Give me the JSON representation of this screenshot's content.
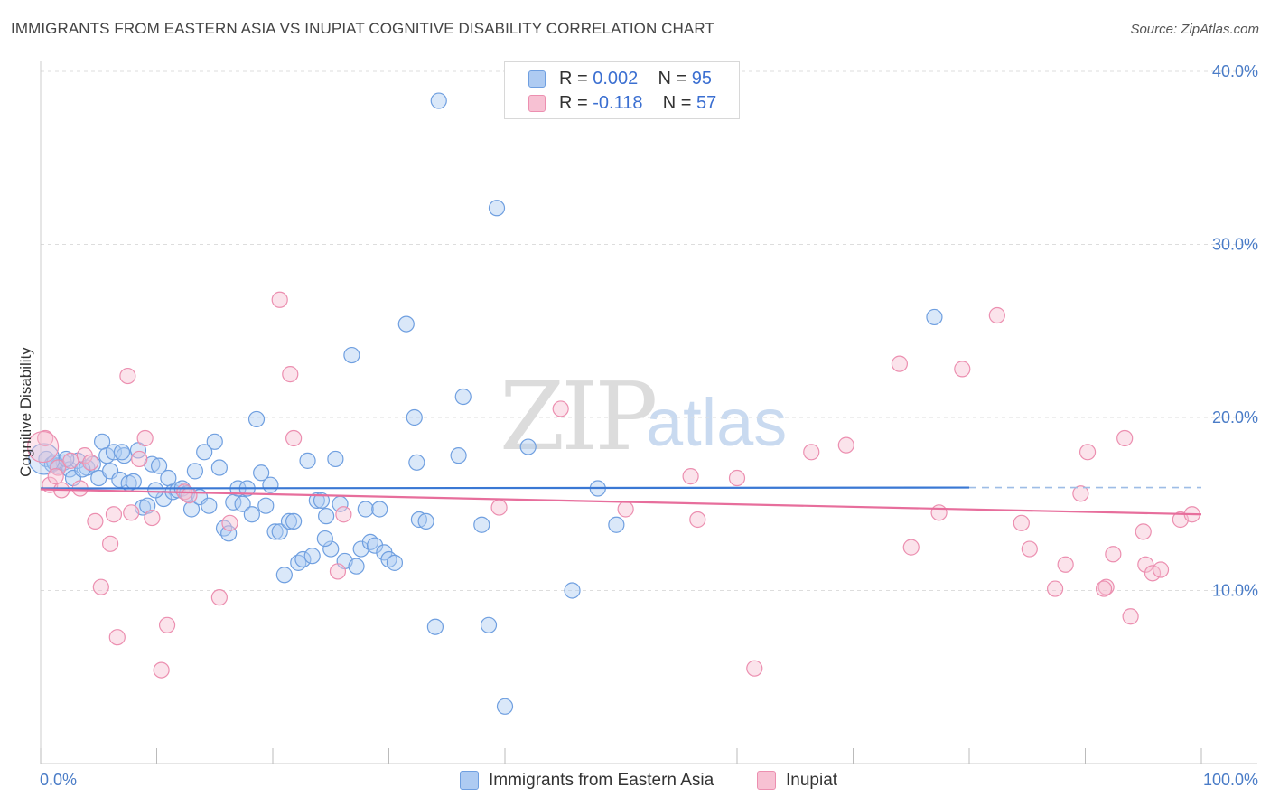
{
  "title": "IMMIGRANTS FROM EASTERN ASIA VS INUPIAT COGNITIVE DISABILITY CORRELATION CHART",
  "source": "Source: ZipAtlas.com",
  "watermark": {
    "zip": "ZIP",
    "atlas": "atlas"
  },
  "legend": {
    "r_label": "R =",
    "n_label": "N =",
    "series": [
      {
        "r": "0.002",
        "n": "95"
      },
      {
        "r": "-0.118",
        "n": "57"
      }
    ]
  },
  "colors": {
    "blue_fill": "#aecbf2",
    "blue_stroke": "#6f9fe0",
    "blue_line": "#3a78d4",
    "pink_fill": "#f7c1d3",
    "pink_stroke": "#ec8fb0",
    "pink_line": "#e76e9c",
    "grid": "#dddddd",
    "tick_text": "#4a7cc7"
  },
  "chart_data": {
    "type": "scatter",
    "title": "IMMIGRANTS FROM EASTERN ASIA VS INUPIAT COGNITIVE DISABILITY CORRELATION CHART",
    "xlabel": "",
    "ylabel": "Cognitive Disability",
    "xlim": [
      0,
      100
    ],
    "ylim": [
      0,
      42
    ],
    "x_tick_labels": [
      "0.0%",
      "100.0%"
    ],
    "y_ticks": [
      10,
      20,
      30,
      40
    ],
    "y_tick_labels": [
      "10.0%",
      "20.0%",
      "30.0%",
      "40.0%"
    ],
    "series": [
      {
        "name": "Immigrants from Eastern Asia",
        "color": "#6f9fe0",
        "trend": {
          "x": [
            0,
            80
          ],
          "y": [
            15.9,
            15.95
          ],
          "dashed_to_x": 100
        },
        "points": [
          [
            0.5,
            17.6
          ],
          [
            1.0,
            17.3
          ],
          [
            1.5,
            17.2
          ],
          [
            2.0,
            17.4
          ],
          [
            2.5,
            17.0
          ],
          [
            2.8,
            16.5
          ],
          [
            3.2,
            17.5
          ],
          [
            4.0,
            17.1
          ],
          [
            4.5,
            17.3
          ],
          [
            5.0,
            16.5
          ],
          [
            5.3,
            18.6
          ],
          [
            5.7,
            17.8
          ],
          [
            6.0,
            16.9
          ],
          [
            6.3,
            18.0
          ],
          [
            6.8,
            16.4
          ],
          [
            7.2,
            17.8
          ],
          [
            7.6,
            16.2
          ],
          [
            8.0,
            16.3
          ],
          [
            8.4,
            18.1
          ],
          [
            8.8,
            14.8
          ],
          [
            9.2,
            14.9
          ],
          [
            9.6,
            17.3
          ],
          [
            10.2,
            17.2
          ],
          [
            10.6,
            15.3
          ],
          [
            11.0,
            16.5
          ],
          [
            11.4,
            15.7
          ],
          [
            11.8,
            15.8
          ],
          [
            12.2,
            15.9
          ],
          [
            12.6,
            15.6
          ],
          [
            13.0,
            14.7
          ],
          [
            13.3,
            16.9
          ],
          [
            13.7,
            15.4
          ],
          [
            14.1,
            18.0
          ],
          [
            14.5,
            14.9
          ],
          [
            15.0,
            18.6
          ],
          [
            15.4,
            17.1
          ],
          [
            15.8,
            13.6
          ],
          [
            16.2,
            13.3
          ],
          [
            16.6,
            15.1
          ],
          [
            17.0,
            15.9
          ],
          [
            17.4,
            15.0
          ],
          [
            17.8,
            15.9
          ],
          [
            18.2,
            14.4
          ],
          [
            18.6,
            19.9
          ],
          [
            19.0,
            16.8
          ],
          [
            19.4,
            14.9
          ],
          [
            19.8,
            16.1
          ],
          [
            20.2,
            13.4
          ],
          [
            20.6,
            13.4
          ],
          [
            21.0,
            10.9
          ],
          [
            21.4,
            14.0
          ],
          [
            21.8,
            14.0
          ],
          [
            22.2,
            11.6
          ],
          [
            22.6,
            11.8
          ],
          [
            23.0,
            17.5
          ],
          [
            23.4,
            12.0
          ],
          [
            23.8,
            15.2
          ],
          [
            24.2,
            15.2
          ],
          [
            24.6,
            14.3
          ],
          [
            25.0,
            12.4
          ],
          [
            25.4,
            17.6
          ],
          [
            25.8,
            15.0
          ],
          [
            26.2,
            11.7
          ],
          [
            26.8,
            23.6
          ],
          [
            27.2,
            11.4
          ],
          [
            27.6,
            12.4
          ],
          [
            28.0,
            14.7
          ],
          [
            28.4,
            12.8
          ],
          [
            28.8,
            12.6
          ],
          [
            29.2,
            14.7
          ],
          [
            29.6,
            12.2
          ],
          [
            30.0,
            11.8
          ],
          [
            30.5,
            11.6
          ],
          [
            31.5,
            25.4
          ],
          [
            32.2,
            20.0
          ],
          [
            32.4,
            17.4
          ],
          [
            32.6,
            14.1
          ],
          [
            33.2,
            14.0
          ],
          [
            34.0,
            7.9
          ],
          [
            34.3,
            38.3
          ],
          [
            36.0,
            17.8
          ],
          [
            36.4,
            21.2
          ],
          [
            38.0,
            13.8
          ],
          [
            38.6,
            8.0
          ],
          [
            39.3,
            32.1
          ],
          [
            42.0,
            18.3
          ],
          [
            45.8,
            10.0
          ],
          [
            48.0,
            15.9
          ],
          [
            49.6,
            13.8
          ],
          [
            77.0,
            25.8
          ],
          [
            1.2,
            17.4
          ],
          [
            2.2,
            17.6
          ],
          [
            3.6,
            17.0
          ],
          [
            7.0,
            18.0
          ],
          [
            9.9,
            15.8
          ],
          [
            24.5,
            13.0
          ],
          [
            40.0,
            3.3
          ]
        ],
        "big_points": [
          [
            0.3,
            17.6
          ]
        ]
      },
      {
        "name": "Inupiat",
        "color": "#ec8fb0",
        "trend": {
          "x": [
            0,
            100
          ],
          "y": [
            15.85,
            14.4
          ]
        },
        "points": [
          [
            0.4,
            18.8
          ],
          [
            0.8,
            16.1
          ],
          [
            1.5,
            17.1
          ],
          [
            1.8,
            15.8
          ],
          [
            2.6,
            17.5
          ],
          [
            3.4,
            15.9
          ],
          [
            3.8,
            17.8
          ],
          [
            4.3,
            17.4
          ],
          [
            4.7,
            14.0
          ],
          [
            5.2,
            10.2
          ],
          [
            6.0,
            12.7
          ],
          [
            6.3,
            14.4
          ],
          [
            6.6,
            7.3
          ],
          [
            7.5,
            22.4
          ],
          [
            7.8,
            14.5
          ],
          [
            8.5,
            17.6
          ],
          [
            9.0,
            18.8
          ],
          [
            9.6,
            14.2
          ],
          [
            10.4,
            5.4
          ],
          [
            10.9,
            8.0
          ],
          [
            12.4,
            15.7
          ],
          [
            12.8,
            15.5
          ],
          [
            15.4,
            9.6
          ],
          [
            16.3,
            13.9
          ],
          [
            20.6,
            26.8
          ],
          [
            21.5,
            22.5
          ],
          [
            21.8,
            18.8
          ],
          [
            25.6,
            11.1
          ],
          [
            26.1,
            14.4
          ],
          [
            39.5,
            14.8
          ],
          [
            44.8,
            20.5
          ],
          [
            50.4,
            14.7
          ],
          [
            56.0,
            16.6
          ],
          [
            56.6,
            14.1
          ],
          [
            60.0,
            16.5
          ],
          [
            61.5,
            5.5
          ],
          [
            66.4,
            18.0
          ],
          [
            69.4,
            18.4
          ],
          [
            74.0,
            23.1
          ],
          [
            75.0,
            12.5
          ],
          [
            77.4,
            14.5
          ],
          [
            79.4,
            22.8
          ],
          [
            82.4,
            25.9
          ],
          [
            84.5,
            13.9
          ],
          [
            85.2,
            12.4
          ],
          [
            87.4,
            10.1
          ],
          [
            88.3,
            11.5
          ],
          [
            89.6,
            15.6
          ],
          [
            90.2,
            18.0
          ],
          [
            91.8,
            10.2
          ],
          [
            92.4,
            12.1
          ],
          [
            93.4,
            18.8
          ],
          [
            93.9,
            8.5
          ],
          [
            95.0,
            13.4
          ],
          [
            95.2,
            11.5
          ],
          [
            95.8,
            11.0
          ],
          [
            96.5,
            11.2
          ],
          [
            98.2,
            14.1
          ],
          [
            99.2,
            14.4
          ],
          [
            1.3,
            16.6
          ],
          [
            91.6,
            10.1
          ]
        ],
        "big_points": [
          [
            0.2,
            18.3
          ]
        ]
      }
    ],
    "legend_labels": [
      "Immigrants from Eastern Asia",
      "Inupiat"
    ]
  }
}
